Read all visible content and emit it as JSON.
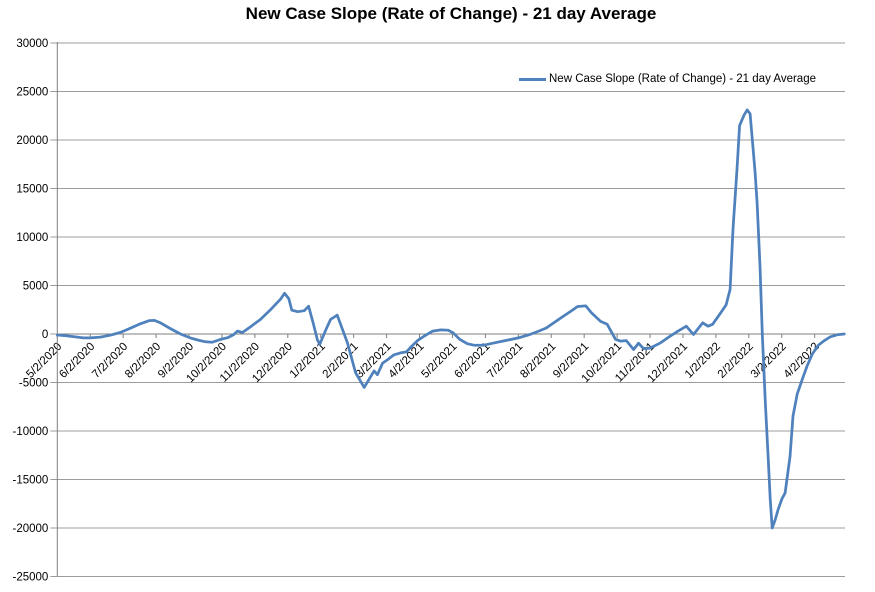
{
  "chart_data": {
    "type": "line",
    "title": "New Case Slope (Rate of Change) - 21 day Average",
    "legend": {
      "label": "New Case Slope (Rate of Change) - 21 day Average",
      "position": "top-right"
    },
    "grid": true,
    "x_axis": {
      "categories": [
        "5/2/2020",
        "6/2/2020",
        "7/2/2020",
        "8/2/2020",
        "9/2/2020",
        "10/2/2020",
        "11/2/2020",
        "12/2/2020",
        "1/2/2021",
        "2/2/2021",
        "3/2/2021",
        "4/2/2021",
        "5/2/2021",
        "6/2/2021",
        "7/2/2021",
        "8/2/2021",
        "9/2/2021",
        "10/2/2021",
        "11/2/2021",
        "12/2/2021",
        "1/2/2022",
        "2/2/2022",
        "3/2/2022",
        "4/2/2022"
      ],
      "label_rotation_deg": 45,
      "axis_crosses_at": 0
    },
    "y_axis": {
      "min": -25000,
      "max": 30000,
      "step": 5000,
      "tick_labels": [
        "30000",
        "25000",
        "20000",
        "15000",
        "10000",
        "5000",
        "0",
        "-5000",
        "-10000",
        "-15000",
        "-20000",
        "-25000"
      ]
    },
    "colors": {
      "line": "#4F81BD",
      "gridline": "#9C9C9C",
      "axis": "#7F7F7F",
      "text": "#000000",
      "background": "#FFFFFF"
    },
    "series": [
      {
        "name": "New Case Slope (Rate of Change) - 21 day Average",
        "color": "#4F81BD",
        "x_unit": "months_since_first_category",
        "points": [
          [
            0,
            -100
          ],
          [
            0.3,
            -200
          ],
          [
            0.55,
            -300
          ],
          [
            0.79,
            -400
          ],
          [
            1,
            -400
          ],
          [
            1.31,
            -320
          ],
          [
            1.61,
            -120
          ],
          [
            1.91,
            150
          ],
          [
            2.22,
            600
          ],
          [
            2.52,
            1050
          ],
          [
            2.8,
            1380
          ],
          [
            2.95,
            1400
          ],
          [
            3.13,
            1150
          ],
          [
            3.43,
            570
          ],
          [
            3.74,
            0
          ],
          [
            4.04,
            -400
          ],
          [
            4.26,
            -620
          ],
          [
            4.5,
            -800
          ],
          [
            4.71,
            -850
          ],
          [
            4.95,
            -570
          ],
          [
            5.17,
            -380
          ],
          [
            5.35,
            -80
          ],
          [
            5.47,
            300
          ],
          [
            5.62,
            150
          ],
          [
            5.87,
            750
          ],
          [
            6.17,
            1500
          ],
          [
            6.47,
            2500
          ],
          [
            6.78,
            3600
          ],
          [
            6.9,
            4200
          ],
          [
            7.03,
            3650
          ],
          [
            7.12,
            2450
          ],
          [
            7.3,
            2300
          ],
          [
            7.5,
            2400
          ],
          [
            7.63,
            2870
          ],
          [
            7.78,
            1000
          ],
          [
            7.9,
            -600
          ],
          [
            7.97,
            -1050
          ],
          [
            8.15,
            400
          ],
          [
            8.3,
            1500
          ],
          [
            8.5,
            1950
          ],
          [
            8.81,
            -900
          ],
          [
            9.06,
            -4000
          ],
          [
            9.32,
            -5500
          ],
          [
            9.5,
            -4500
          ],
          [
            9.62,
            -3800
          ],
          [
            9.72,
            -4200
          ],
          [
            9.88,
            -3000
          ],
          [
            10.05,
            -2600
          ],
          [
            10.22,
            -2150
          ],
          [
            10.42,
            -1950
          ],
          [
            10.6,
            -1850
          ],
          [
            10.75,
            -1300
          ],
          [
            10.95,
            -650
          ],
          [
            11.15,
            -200
          ],
          [
            11.4,
            300
          ],
          [
            11.65,
            420
          ],
          [
            11.88,
            380
          ],
          [
            12.02,
            120
          ],
          [
            12.22,
            -550
          ],
          [
            12.45,
            -1000
          ],
          [
            12.65,
            -1150
          ],
          [
            12.95,
            -1150
          ],
          [
            13.3,
            -900
          ],
          [
            13.62,
            -670
          ],
          [
            14,
            -400
          ],
          [
            14.35,
            -50
          ],
          [
            14.62,
            300
          ],
          [
            14.85,
            620
          ],
          [
            15,
            980
          ],
          [
            15.3,
            1670
          ],
          [
            15.6,
            2360
          ],
          [
            15.8,
            2840
          ],
          [
            16.05,
            2900
          ],
          [
            16.22,
            2200
          ],
          [
            16.5,
            1300
          ],
          [
            16.7,
            1000
          ],
          [
            16.95,
            -550
          ],
          [
            17.1,
            -730
          ],
          [
            17.28,
            -680
          ],
          [
            17.5,
            -1600
          ],
          [
            17.65,
            -950
          ],
          [
            17.8,
            -1500
          ],
          [
            18,
            -1450
          ],
          [
            18.3,
            -950
          ],
          [
            18.6,
            -250
          ],
          [
            18.8,
            200
          ],
          [
            19.1,
            800
          ],
          [
            19.32,
            -50
          ],
          [
            19.6,
            1150
          ],
          [
            19.76,
            800
          ],
          [
            19.9,
            1000
          ],
          [
            20.15,
            2200
          ],
          [
            20.31,
            3000
          ],
          [
            20.43,
            4600
          ],
          [
            20.52,
            10800
          ],
          [
            20.64,
            17000
          ],
          [
            20.72,
            21500
          ],
          [
            20.86,
            22600
          ],
          [
            20.95,
            23100
          ],
          [
            21.04,
            22700
          ],
          [
            21.13,
            19100
          ],
          [
            21.19,
            16650
          ],
          [
            21.25,
            13550
          ],
          [
            21.34,
            7000
          ],
          [
            21.41,
            0
          ],
          [
            21.5,
            -7000
          ],
          [
            21.59,
            -13000
          ],
          [
            21.65,
            -17000
          ],
          [
            21.71,
            -20000
          ],
          [
            21.8,
            -19150
          ],
          [
            21.89,
            -18100
          ],
          [
            22.01,
            -16950
          ],
          [
            22.1,
            -16400
          ],
          [
            22.25,
            -12650
          ],
          [
            22.34,
            -8450
          ],
          [
            22.47,
            -6200
          ],
          [
            22.62,
            -4700
          ],
          [
            22.77,
            -3300
          ],
          [
            22.92,
            -2100
          ],
          [
            23.1,
            -1200
          ],
          [
            23.26,
            -750
          ],
          [
            23.47,
            -300
          ],
          [
            23.68,
            -80
          ],
          [
            23.9,
            0
          ]
        ]
      }
    ]
  }
}
